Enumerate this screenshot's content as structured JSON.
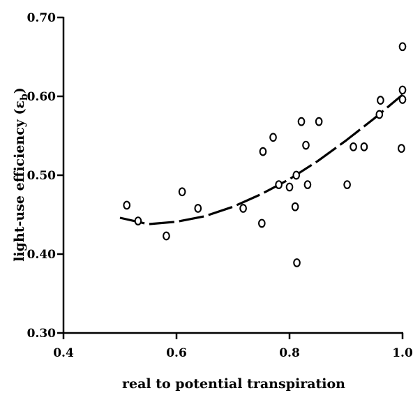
{
  "chart_data": {
    "type": "scatter",
    "title": "",
    "xlabel": "real to potential transpiration",
    "ylabel": "light-use efficiency (εb)",
    "ylabel_parts": {
      "main": "light-use efficiency (",
      "symbol": "ε",
      "subscript": "b",
      "close": ")"
    },
    "xlim": [
      0.4,
      1.0
    ],
    "ylim": [
      0.3,
      0.7
    ],
    "xticks": [
      0.4,
      0.6,
      0.8,
      1.0
    ],
    "xtick_labels": [
      "0.4",
      "0.6",
      "0.8",
      "1.0"
    ],
    "yticks": [
      0.3,
      0.4,
      0.5,
      0.6,
      0.7
    ],
    "ytick_labels": [
      "0.30",
      "0.40",
      "0.50",
      "0.60",
      "0.70"
    ],
    "grid": false,
    "legend": "none",
    "points": {
      "x": [
        0.512,
        0.532,
        0.582,
        0.61,
        0.638,
        0.718,
        0.751,
        0.753,
        0.771,
        0.781,
        0.8,
        0.81,
        0.812,
        0.813,
        0.821,
        0.829,
        0.832,
        0.852,
        0.902,
        0.913,
        0.932,
        0.959,
        0.961,
        0.998,
        1.0,
        1.0,
        1.0
      ],
      "y": [
        0.462,
        0.442,
        0.423,
        0.479,
        0.458,
        0.458,
        0.439,
        0.53,
        0.548,
        0.488,
        0.485,
        0.46,
        0.5,
        0.389,
        0.568,
        0.538,
        0.488,
        0.568,
        0.488,
        0.536,
        0.536,
        0.577,
        0.595,
        0.534,
        0.663,
        0.608,
        0.596
      ]
    },
    "fit_line": {
      "style": "dashed",
      "x": [
        0.5,
        0.55,
        0.6,
        0.65,
        0.7,
        0.75,
        0.8,
        0.85,
        0.9,
        0.95,
        1.0
      ],
      "y": [
        0.446,
        0.438,
        0.441,
        0.448,
        0.46,
        0.476,
        0.495,
        0.518,
        0.544,
        0.572,
        0.602
      ]
    },
    "colors": {
      "marks": "#000000",
      "background": "#ffffff"
    }
  }
}
